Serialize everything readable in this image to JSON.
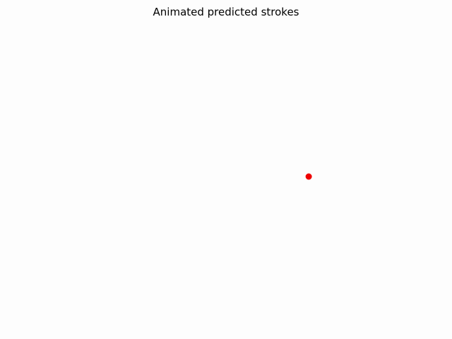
{
  "chart_data": {
    "type": "scatter",
    "title": "Animated predicted strokes",
    "xlabel": "",
    "ylabel": "",
    "axes_visible": false,
    "grid": false,
    "series": [
      {
        "points": [
          {
            "x": 0.72,
            "y": 0.5
          }
        ],
        "color": "#ee0000",
        "marker": "circle"
      }
    ],
    "xlim": [
      0,
      1
    ],
    "ylim": [
      0,
      1
    ]
  }
}
